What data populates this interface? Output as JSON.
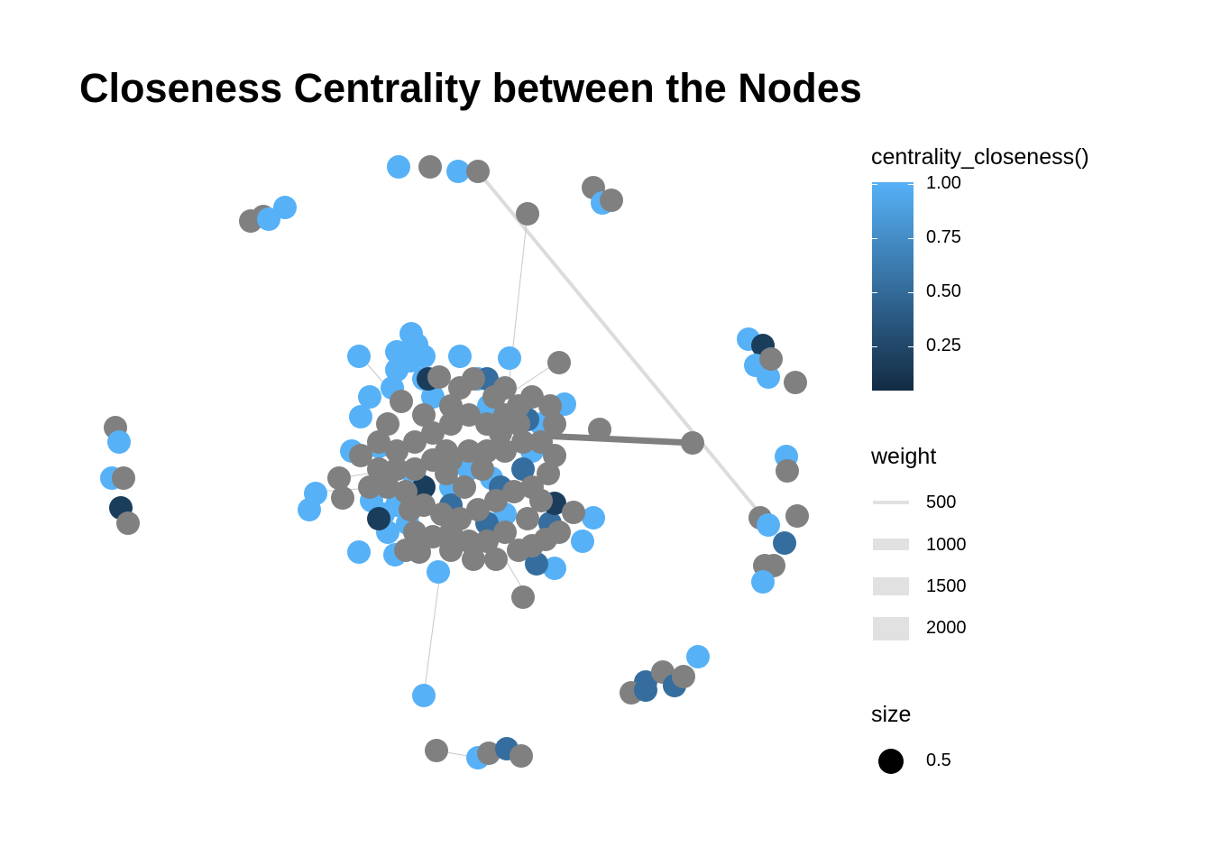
{
  "title": "Closeness Centrality between the Nodes",
  "legend": {
    "color": {
      "title": "centrality_closeness()",
      "labels": [
        "1.00",
        "0.75",
        "0.50",
        "0.25"
      ],
      "low_color": "#132b43",
      "high_color": "#56b1f7"
    },
    "weight": {
      "title": "weight",
      "labels": [
        "500",
        "1000",
        "1500",
        "2000"
      ],
      "edge_color": "#e1e1e1"
    },
    "size": {
      "title": "size",
      "labels": [
        "0.5"
      ]
    }
  },
  "colors": {
    "light_blue": "#56b1f7",
    "mid_blue": "#356e9e",
    "dark_blue": "#1b3d5c",
    "gray_node": "#808080",
    "edge": "#c8c8c8",
    "heavy_edge": "#7f7f7f"
  }
}
